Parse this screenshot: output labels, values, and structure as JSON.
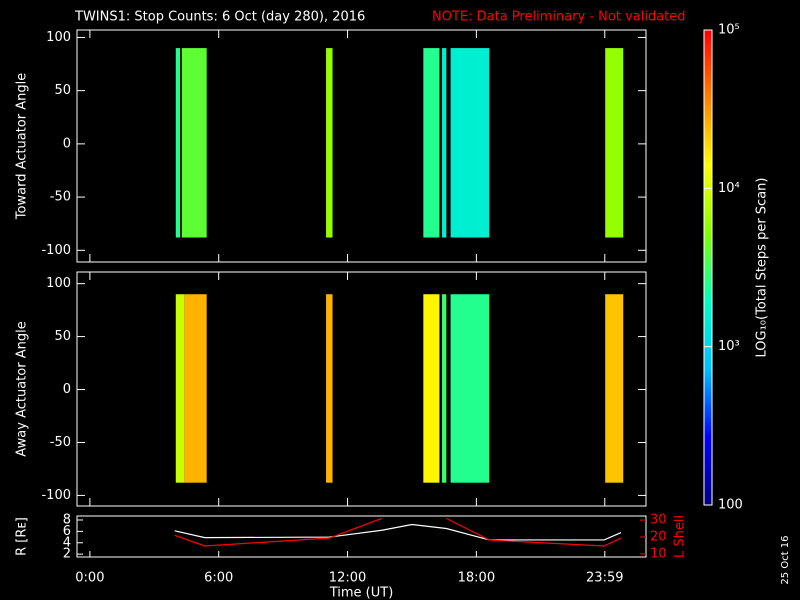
{
  "chart_data": [
    {
      "type": "spectrogram",
      "ylabel": "Toward Actuator Angle",
      "xlim": [
        -0.6,
        25.9
      ],
      "xticks": [
        0,
        6,
        12,
        18,
        23.98
      ],
      "ylim": [
        -111,
        107
      ],
      "yticks": [
        100,
        50,
        0,
        -50,
        -100
      ],
      "angle_range": [
        -88,
        90
      ],
      "strips": [
        {
          "x": [
            4.0,
            4.2
          ],
          "value": 2500
        },
        {
          "x": [
            4.28,
            5.44
          ],
          "value": 4000
        },
        {
          "x": [
            11.0,
            11.3
          ],
          "value": 6000
        },
        {
          "x": [
            15.53,
            16.28
          ],
          "value": 2500
        },
        {
          "x": [
            16.4,
            16.6
          ],
          "value": 1500
        },
        {
          "x": [
            16.8,
            18.6
          ],
          "value": 1500
        },
        {
          "x": [
            24.0,
            24.84
          ],
          "value": 6000
        }
      ]
    },
    {
      "type": "spectrogram",
      "ylabel": "Away Actuator Angle",
      "xlim": [
        -0.6,
        25.9
      ],
      "xticks": [
        0,
        6,
        12,
        18,
        23.98
      ],
      "ylim": [
        -110,
        111
      ],
      "yticks": [
        100,
        50,
        0,
        -50,
        -100
      ],
      "angle_range": [
        -88,
        90
      ],
      "strips": [
        {
          "x": [
            4.0,
            4.4
          ],
          "value": 9000
        },
        {
          "x": [
            4.4,
            5.44
          ],
          "value": 25000
        },
        {
          "x": [
            11.0,
            11.3
          ],
          "value": 25000
        },
        {
          "x": [
            15.53,
            16.28
          ],
          "value": 15000
        },
        {
          "x": [
            16.4,
            16.6
          ],
          "value": 3000
        },
        {
          "x": [
            16.8,
            18.6
          ],
          "value": 2500
        },
        {
          "x": [
            24.0,
            24.84
          ],
          "value": 22000
        }
      ]
    },
    {
      "type": "line",
      "title": "TWINS1: Stop Counts:  6 Oct (day 280), 2016",
      "subtitle": "NOTE: Data Preliminary - Not validated",
      "xlabel": "Time (UT)",
      "annotation": "25 Oct 16",
      "xlim": [
        -0.6,
        25.9
      ],
      "xticks": [
        {
          "value": 0,
          "label": "0:00"
        },
        {
          "value": 6,
          "label": "6:00"
        },
        {
          "value": 12,
          "label": "12:00"
        },
        {
          "value": 18,
          "label": "18:00"
        },
        {
          "value": 23.98,
          "label": "23:59"
        }
      ],
      "ylim": [
        1.5,
        8.7
      ],
      "yticks": [
        2,
        4,
        6,
        8
      ],
      "y2lim": [
        8.2,
        32.4
      ],
      "y2ticks": [
        10,
        20,
        30
      ],
      "x": [
        3.95,
        5.35,
        11.16,
        13.6,
        15,
        16.6,
        18.6,
        23.95,
        24.74
      ],
      "series": [
        {
          "name": "R [Rᴇ]",
          "color": "#ffffff",
          "values": [
            6.1,
            4.9,
            5.0,
            6.2,
            7.2,
            6.5,
            4.5,
            4.5,
            5.8
          ]
        },
        {
          "name": "L Shell",
          "color": "#ff0000",
          "axis": "y2",
          "values": [
            21,
            14.7,
            19.4,
            31,
            null,
            31,
            18.2,
            14.7,
            19.4
          ]
        }
      ]
    },
    {
      "type": "colorbar",
      "label": "LOG₁₀(Total Steps per Scan)",
      "log": true,
      "lim": [
        100,
        100000
      ],
      "ticks": [
        100,
        {
          "value": 1000,
          "label": "10³"
        },
        {
          "value": 10000,
          "label": "10⁴"
        },
        {
          "value": 100000,
          "label": "10⁵"
        }
      ],
      "colors": [
        "#00007f",
        "#0000ff",
        "#00bfff",
        "#00ffc0",
        "#80ff00",
        "#ffff00",
        "#ff8000",
        "#ff0000"
      ]
    }
  ]
}
